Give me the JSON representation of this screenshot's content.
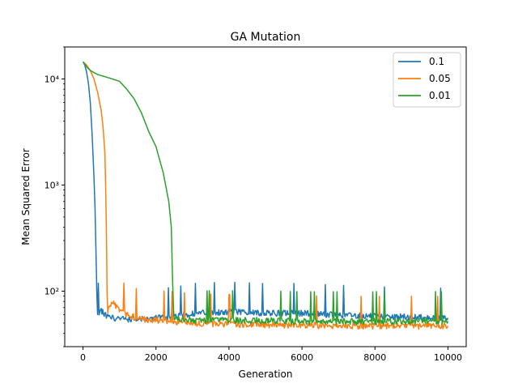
{
  "chart_data": {
    "type": "line",
    "title": "GA Mutation",
    "xlabel": "Generation",
    "ylabel": "Mean Squared Error",
    "xlim": [
      -500,
      10500
    ],
    "ylim": [
      30,
      20000
    ],
    "yscale": "log",
    "grid": false,
    "legend_position": "top-right",
    "x_ticks": [
      0,
      2000,
      4000,
      6000,
      8000,
      10000
    ],
    "x_tick_labels": [
      "0",
      "2000",
      "4000",
      "6000",
      "8000",
      "10000"
    ],
    "y_ticks": [
      100,
      1000,
      10000
    ],
    "y_tick_labels": [
      "10²",
      "10³",
      "10⁴"
    ],
    "series": [
      {
        "name": "0.1",
        "color": "#1f77b4",
        "points": [
          [
            0,
            14500
          ],
          [
            50,
            13500
          ],
          [
            100,
            11500
          ],
          [
            150,
            9000
          ],
          [
            200,
            6000
          ],
          [
            250,
            3000
          ],
          [
            300,
            1200
          ],
          [
            330,
            600
          ],
          [
            360,
            200
          ],
          [
            380,
            90
          ],
          [
            400,
            62
          ],
          [
            500,
            65
          ],
          [
            700,
            57
          ],
          [
            1000,
            55
          ],
          [
            1500,
            54
          ],
          [
            2000,
            56
          ],
          [
            2500,
            57
          ],
          [
            3000,
            62
          ],
          [
            4000,
            64
          ],
          [
            5000,
            62
          ],
          [
            6000,
            62
          ],
          [
            7000,
            60
          ],
          [
            8000,
            58
          ],
          [
            9000,
            57
          ],
          [
            10000,
            56
          ]
        ]
      },
      {
        "name": "0.05",
        "color": "#ff7f0e",
        "points": [
          [
            0,
            14500
          ],
          [
            100,
            13500
          ],
          [
            200,
            12000
          ],
          [
            300,
            10000
          ],
          [
            400,
            7500
          ],
          [
            500,
            5000
          ],
          [
            550,
            3500
          ],
          [
            600,
            2000
          ],
          [
            620,
            1000
          ],
          [
            640,
            400
          ],
          [
            660,
            100
          ],
          [
            680,
            65
          ],
          [
            800,
            80
          ],
          [
            1000,
            65
          ],
          [
            1500,
            55
          ],
          [
            2000,
            53
          ],
          [
            2500,
            52
          ],
          [
            3000,
            50
          ],
          [
            4000,
            49
          ],
          [
            5000,
            48
          ],
          [
            6000,
            48
          ],
          [
            7000,
            47
          ],
          [
            8000,
            47
          ],
          [
            9000,
            47
          ],
          [
            10000,
            47
          ]
        ]
      },
      {
        "name": "0.01",
        "color": "#2ca02c",
        "points": [
          [
            0,
            14500
          ],
          [
            100,
            13000
          ],
          [
            200,
            12000
          ],
          [
            400,
            11000
          ],
          [
            600,
            10500
          ],
          [
            800,
            10000
          ],
          [
            1000,
            9500
          ],
          [
            1200,
            8000
          ],
          [
            1400,
            6500
          ],
          [
            1600,
            4800
          ],
          [
            1800,
            3200
          ],
          [
            2000,
            2300
          ],
          [
            2200,
            1300
          ],
          [
            2350,
            700
          ],
          [
            2420,
            400
          ],
          [
            2450,
            150
          ],
          [
            2480,
            65
          ],
          [
            2500,
            55
          ],
          [
            3000,
            53
          ],
          [
            4000,
            53
          ],
          [
            5000,
            53
          ],
          [
            6000,
            52
          ],
          [
            7000,
            52
          ],
          [
            8000,
            52
          ],
          [
            9000,
            52
          ],
          [
            10000,
            52
          ]
        ]
      }
    ]
  }
}
